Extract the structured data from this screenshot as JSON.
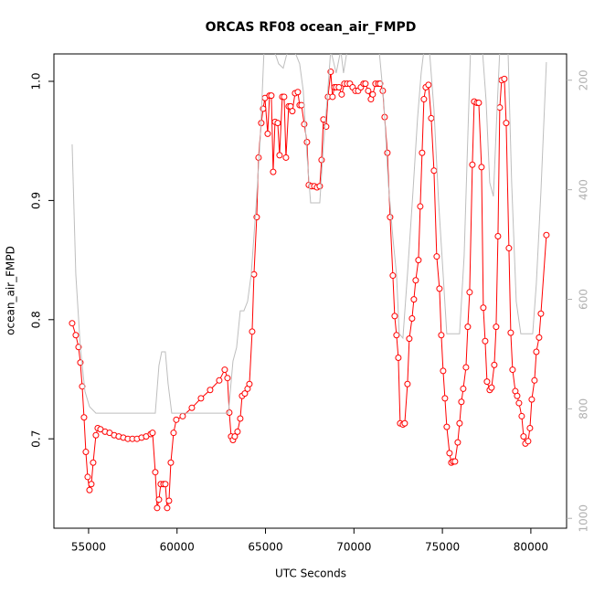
{
  "chart_data": {
    "type": "line",
    "title": "ORCAS RF08 ocean_air_FMPD",
    "xlabel": "UTC Seconds",
    "ylabel": "ocean_air_FMPD",
    "xlim": [
      53040,
      82020
    ],
    "xticks": [
      55000,
      60000,
      65000,
      70000,
      75000,
      80000
    ],
    "ylim": [
      0.625,
      1.023
    ],
    "yticks": [
      0.7,
      0.8,
      0.9,
      {
        "value": 1,
        "label": "1.0"
      }
    ],
    "y2lim": [
      1018,
      152
    ],
    "y2ticks": [
      200,
      400,
      600,
      800,
      1000
    ],
    "series": [
      {
        "color": "#ff0000",
        "marker": "circle",
        "x": [
          54070,
          54277,
          54432,
          54535,
          54638,
          54742,
          54845,
          54948,
          55052,
          55155,
          55258,
          55413,
          55516,
          55671,
          55930,
          56188,
          56446,
          56704,
          56963,
          57221,
          57479,
          57738,
          57996,
          58254,
          58512,
          58616,
          58770,
          58874,
          58977,
          59080,
          59235,
          59339,
          59442,
          59545,
          59649,
          59804,
          59958,
          60320,
          60837,
          61353,
          61870,
          62386,
          62696,
          62851,
          62954,
          63058,
          63161,
          63264,
          63419,
          63574,
          63677,
          63832,
          63987,
          64091,
          64246,
          64349,
          64504,
          64607,
          64762,
          64866,
          64969,
          65124,
          65227,
          65330,
          65434,
          65537,
          65692,
          65795,
          65950,
          66053,
          66157,
          66312,
          66415,
          66518,
          66673,
          66828,
          66931,
          67035,
          67190,
          67345,
          67448,
          67603,
          67758,
          67913,
          68068,
          68171,
          68274,
          68429,
          68532,
          68687,
          68790,
          68894,
          68997,
          69152,
          69307,
          69462,
          69617,
          69772,
          69927,
          70082,
          70237,
          70392,
          70547,
          70650,
          70805,
          70960,
          71063,
          71218,
          71373,
          71476,
          71631,
          71735,
          71890,
          72045,
          72200,
          72303,
          72406,
          72510,
          72613,
          72768,
          72871,
          73026,
          73129,
          73284,
          73388,
          73491,
          73646,
          73749,
          73852,
          73956,
          74059,
          74214,
          74369,
          74524,
          74679,
          74834,
          74938,
          75041,
          75144,
          75248,
          75403,
          75506,
          75609,
          75713,
          75868,
          75971,
          76074,
          76178,
          76333,
          76436,
          76539,
          76694,
          76798,
          76953,
          77056,
          77211,
          77314,
          77418,
          77521,
          77676,
          77779,
          77934,
          78037,
          78141,
          78244,
          78347,
          78502,
          78606,
          78761,
          78864,
          78967,
          79122,
          79226,
          79329,
          79484,
          79587,
          79691,
          79846,
          79949,
          80052,
          80207,
          80311,
          80466,
          80569,
          80879
        ],
        "values": [
          0.797,
          0.787,
          0.777,
          0.764,
          0.744,
          0.718,
          0.689,
          0.668,
          0.657,
          0.662,
          0.68,
          0.703,
          0.709,
          0.708,
          0.706,
          0.705,
          0.703,
          0.702,
          0.701,
          0.7,
          0.7,
          0.7,
          0.701,
          0.702,
          0.704,
          0.705,
          0.672,
          0.642,
          0.649,
          0.662,
          0.662,
          0.662,
          0.642,
          0.648,
          0.68,
          0.705,
          0.716,
          0.719,
          0.726,
          0.734,
          0.741,
          0.749,
          0.758,
          0.751,
          0.722,
          0.702,
          0.699,
          0.702,
          0.706,
          0.717,
          0.736,
          0.738,
          0.742,
          0.746,
          0.79,
          0.838,
          0.886,
          0.936,
          0.965,
          0.977,
          0.986,
          0.956,
          0.988,
          0.988,
          0.924,
          0.966,
          0.965,
          0.938,
          0.987,
          0.987,
          0.936,
          0.979,
          0.979,
          0.975,
          0.99,
          0.991,
          0.98,
          0.98,
          0.964,
          0.949,
          0.913,
          0.912,
          0.912,
          0.911,
          0.912,
          0.934,
          0.968,
          0.962,
          0.987,
          1.008,
          0.987,
          0.995,
          0.995,
          0.995,
          0.989,
          0.998,
          0.998,
          0.998,
          0.995,
          0.992,
          0.992,
          0.995,
          0.998,
          0.998,
          0.992,
          0.985,
          0.989,
          0.998,
          0.998,
          0.998,
          0.992,
          0.97,
          0.94,
          0.886,
          0.837,
          0.803,
          0.787,
          0.768,
          0.713,
          0.712,
          0.713,
          0.746,
          0.784,
          0.801,
          0.817,
          0.833,
          0.85,
          0.895,
          0.94,
          0.985,
          0.995,
          0.997,
          0.969,
          0.925,
          0.853,
          0.826,
          0.787,
          0.757,
          0.734,
          0.71,
          0.688,
          0.68,
          0.681,
          0.681,
          0.697,
          0.713,
          0.731,
          0.742,
          0.76,
          0.794,
          0.823,
          0.93,
          0.983,
          0.982,
          0.982,
          0.928,
          0.81,
          0.782,
          0.748,
          0.741,
          0.743,
          0.762,
          0.794,
          0.87,
          0.978,
          1.001,
          1.002,
          0.965,
          0.86,
          0.789,
          0.758,
          0.74,
          0.736,
          0.73,
          0.719,
          0.702,
          0.696,
          0.698,
          0.709,
          0.733,
          0.749,
          0.773,
          0.785,
          0.805,
          0.871
        ]
      },
      {
        "color": "#bebebe",
        "axis": "y2",
        "x": [
          54070,
          54277,
          54535,
          54793,
          55052,
          55413,
          58770,
          58977,
          59132,
          59339,
          59494,
          59700,
          62903,
          63161,
          63367,
          63574,
          63780,
          63987,
          64194,
          64452,
          64710,
          64917,
          65485,
          65743,
          66002,
          66260,
          66621,
          66931,
          67138,
          67345,
          67551,
          68068,
          68274,
          68481,
          68687,
          68997,
          69255,
          69410,
          69617,
          71424,
          71683,
          71941,
          72200,
          72406,
          72561,
          72768,
          73026,
          73336,
          73594,
          73800,
          73956,
          74266,
          74524,
          74782,
          75041,
          75248,
          75971,
          76229,
          76436,
          76591,
          77263,
          77469,
          77676,
          77883,
          78089,
          78244,
          78709,
          78915,
          79174,
          79432,
          80104,
          80311,
          80569,
          80879
        ],
        "values": [
          317,
          554,
          688,
          768,
          796,
          808,
          808,
          721,
          696,
          696,
          754,
          808,
          808,
          713,
          688,
          621,
          621,
          604,
          554,
          437,
          304,
          145,
          145,
          170,
          178,
          145,
          145,
          170,
          220,
          337,
          424,
          424,
          320,
          237,
          145,
          187,
          145,
          187,
          145,
          145,
          237,
          387,
          487,
          554,
          663,
          671,
          554,
          404,
          270,
          187,
          145,
          145,
          254,
          420,
          554,
          663,
          663,
          521,
          304,
          145,
          145,
          237,
          387,
          412,
          254,
          145,
          145,
          387,
          604,
          663,
          663,
          571,
          404,
          167
        ]
      }
    ]
  }
}
